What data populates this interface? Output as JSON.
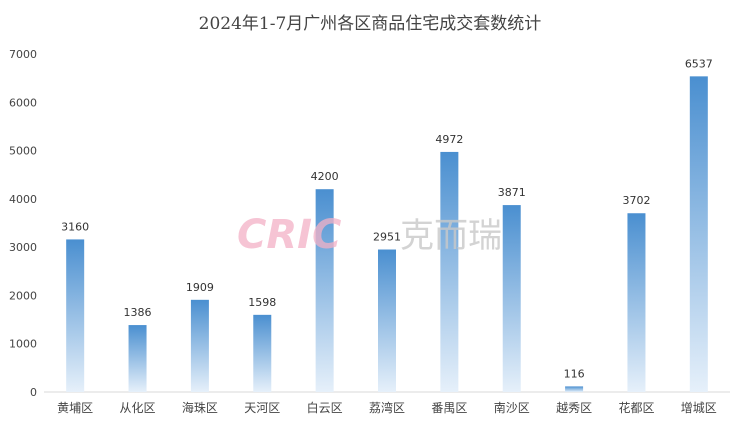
{
  "chart_data": {
    "type": "bar",
    "title": "2024年1-7月广州各区商品住宅成交套数统计",
    "categories": [
      "黄埔区",
      "从化区",
      "海珠区",
      "天河区",
      "白云区",
      "荔湾区",
      "番禺区",
      "南沙区",
      "越秀区",
      "花都区",
      "增城区"
    ],
    "values": [
      3160,
      1386,
      1909,
      1598,
      4200,
      2951,
      4972,
      3871,
      116,
      3702,
      6537
    ],
    "ylim": [
      0,
      7000
    ],
    "yticks": [
      0,
      1000,
      2000,
      3000,
      4000,
      5000,
      6000,
      7000
    ],
    "grid": false,
    "legend": "none",
    "colors": {
      "bar_top": "#4a8fd0",
      "bar_bottom": "#e6f0fa",
      "axis": "#d9d9d9"
    }
  },
  "watermark": {
    "brand": "CRIC",
    "brand_cn": "克而瑞"
  }
}
